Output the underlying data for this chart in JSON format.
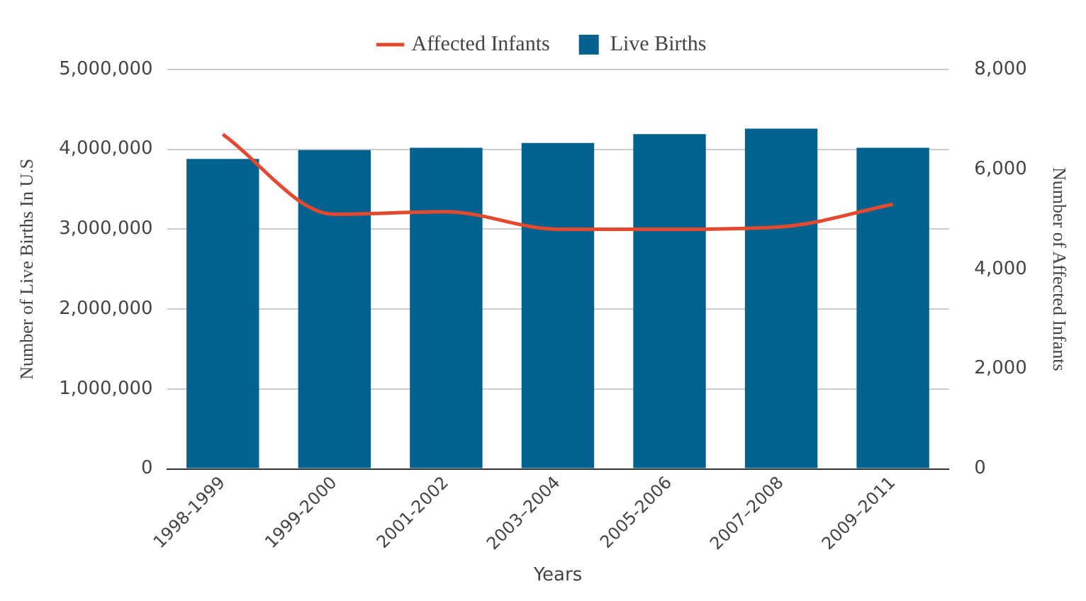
{
  "chart_data": {
    "type": "bar",
    "xlabel": "Years",
    "ylabel": "Number of Live Births In U.S",
    "y2label": "Number of Affected Infants",
    "categories": [
      "1998-1999",
      "1999-2000",
      "2001-2002",
      "2003–2004",
      "2005-2006",
      "2007–2008",
      "2009–2011"
    ],
    "series": [
      {
        "name": "Affected Infants",
        "type": "line",
        "axis": "y2",
        "color": "#e2492f",
        "values": [
          6700,
          5100,
          5150,
          4800,
          4800,
          4850,
          5300
        ]
      },
      {
        "name": "Live Births",
        "color": "#01628f",
        "values": [
          3880000,
          3990000,
          4020000,
          4080000,
          4190000,
          4260000,
          4020000
        ]
      }
    ],
    "ylim": [
      0,
      5000000
    ],
    "yticks": [
      0,
      {
        "value": 1000000,
        "label": "1,000,000"
      },
      {
        "value": 2000000,
        "label": "2,000,000"
      },
      {
        "value": 3000000,
        "label": "3,000,000"
      },
      {
        "value": 4000000,
        "label": "4,000,000"
      },
      {
        "value": 5000000,
        "label": "5,000,000"
      }
    ],
    "y2lim": [
      0,
      8000
    ],
    "y2ticks": [
      0,
      {
        "value": 2000,
        "label": "2,000"
      },
      {
        "value": 4000,
        "label": "4,000"
      },
      {
        "value": 6000,
        "label": "6,000"
      },
      {
        "value": 8000,
        "label": "8,000"
      }
    ],
    "grid": "y",
    "legend": "top",
    "marker": "none",
    "line_style": "solid"
  }
}
